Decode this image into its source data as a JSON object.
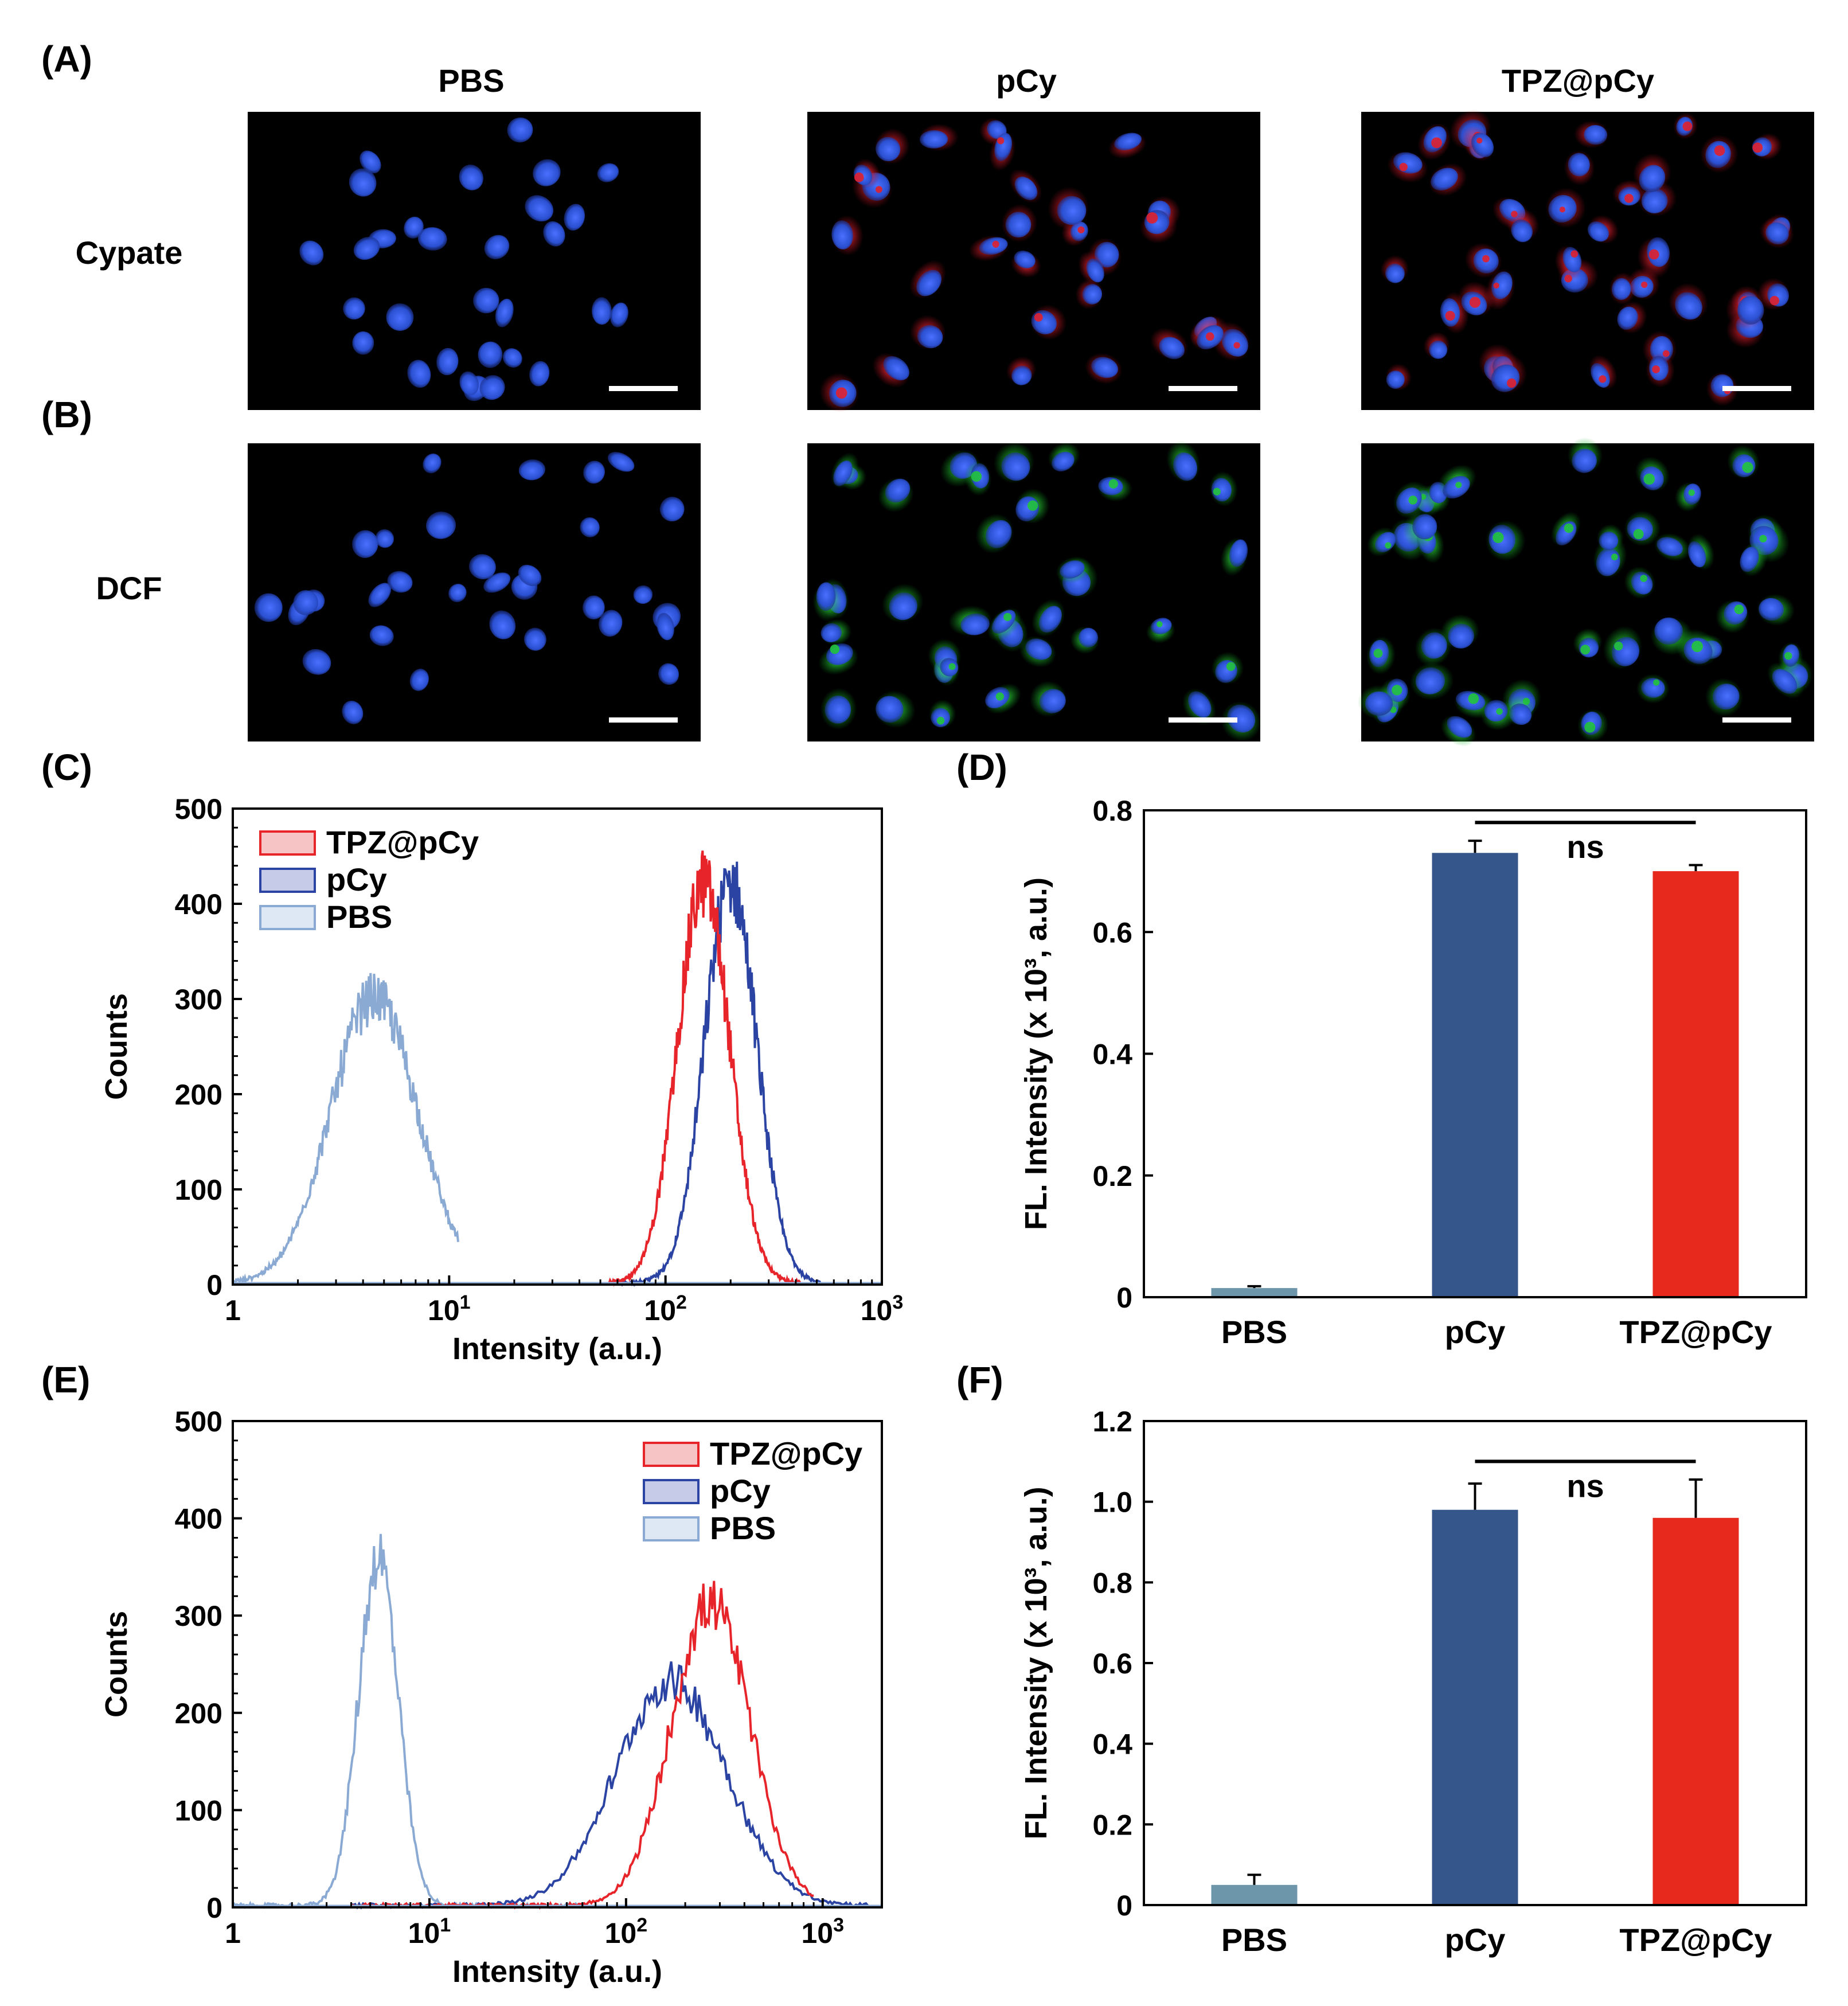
{
  "panels": {
    "A": "(A)",
    "B": "(B)",
    "C": "(C)",
    "D": "(D)",
    "E": "(E)",
    "F": "(F)"
  },
  "micrographs": {
    "columns": [
      "PBS",
      "pCy",
      "TPZ@pCy"
    ],
    "rows": [
      "Cypate",
      "DCF"
    ],
    "colors": {
      "nucleus": "#2a4fd0",
      "cypate": "#e0202c",
      "dcf": "#22c43a",
      "background": "#000000",
      "scalebar": "#ffffff"
    }
  },
  "chart_data": [
    {
      "id": "C",
      "type": "line",
      "xlabel": "Intensity (a.u.)",
      "ylabel": "Counts",
      "xscale": "log",
      "xlim": [
        1,
        1000
      ],
      "ylim": [
        0,
        500
      ],
      "yticks": [
        "0",
        "100",
        "200",
        "300",
        "400",
        "500"
      ],
      "xticks": [
        {
          "v": 1,
          "b": "1",
          "e": ""
        },
        {
          "v": 10,
          "b": "10",
          "e": "1"
        },
        {
          "v": 100,
          "b": "10",
          "e": "2"
        },
        {
          "v": 1000,
          "b": "10",
          "e": "3"
        }
      ],
      "legend": {
        "placement": "top-left",
        "entries": [
          "TPZ@pCy",
          "pCy",
          "PBS"
        ]
      },
      "series": [
        {
          "name": "TPZ@pCy",
          "color": "#e8242b",
          "peak_x": 150,
          "peak_y": 420,
          "sigma_log": 0.12,
          "range": [
            55,
            420
          ]
        },
        {
          "name": "pCy",
          "color": "#2b44a3",
          "peak_x": 200,
          "peak_y": 420,
          "sigma_log": 0.12,
          "range": [
            60,
            520
          ]
        },
        {
          "name": "PBS",
          "color": "#8aaad4",
          "peak_x": 4.5,
          "peak_y": 300,
          "sigma_log": 0.2,
          "range": [
            1,
            11
          ]
        }
      ]
    },
    {
      "id": "D",
      "type": "bar",
      "ylabel": "FL. Intensity (x 10³, a.u.)",
      "ylim": [
        0,
        0.8
      ],
      "yticks": [
        "0",
        "0.2",
        "0.4",
        "0.6",
        "0.8"
      ],
      "categories": [
        "PBS",
        "pCy",
        "TPZ@pCy"
      ],
      "values": [
        0.015,
        0.73,
        0.7
      ],
      "errors": [
        0.003,
        0.02,
        0.01
      ],
      "colors": [
        "#6e96ab",
        "#35568b",
        "#e6281d"
      ],
      "annotation": {
        "text": "ns",
        "from": 1,
        "to": 2,
        "y": 0.78
      }
    },
    {
      "id": "E",
      "type": "line",
      "xlabel": "Intensity (a.u.)",
      "ylabel": "Counts",
      "xscale": "log",
      "xlim": [
        1,
        2000
      ],
      "ylim": [
        0,
        500
      ],
      "yticks": [
        "0",
        "100",
        "200",
        "300",
        "400",
        "500"
      ],
      "xticks": [
        {
          "v": 1,
          "b": "1",
          "e": ""
        },
        {
          "v": 10,
          "b": "10",
          "e": "1"
        },
        {
          "v": 100,
          "b": "10",
          "e": "2"
        },
        {
          "v": 1000,
          "b": "10",
          "e": "3"
        }
      ],
      "legend": {
        "placement": "top-right",
        "entries": [
          "TPZ@pCy",
          "pCy",
          "PBS"
        ]
      },
      "series": [
        {
          "name": "TPZ@pCy",
          "color": "#e8242b",
          "peak_x": 270,
          "peak_y": 310,
          "sigma_log": 0.2,
          "range": [
            4,
            900
          ]
        },
        {
          "name": "pCy",
          "color": "#2b44a3",
          "peak_x": 170,
          "peak_y": 230,
          "sigma_log": 0.28,
          "range": [
            4,
            1700
          ]
        },
        {
          "name": "PBS",
          "color": "#8aaad4",
          "peak_x": 5.5,
          "peak_y": 360,
          "sigma_log": 0.1,
          "range": [
            1,
            60
          ]
        }
      ]
    },
    {
      "id": "F",
      "type": "bar",
      "ylabel": "FL. Intensity (x 10³, a.u.)",
      "ylim": [
        0,
        1.2
      ],
      "yticks": [
        "0",
        "0.2",
        "0.4",
        "0.6",
        "0.8",
        "1.0",
        "1.2"
      ],
      "categories": [
        "PBS",
        "pCy",
        "TPZ@pCy"
      ],
      "values": [
        0.05,
        0.98,
        0.96
      ],
      "errors": [
        0.025,
        0.065,
        0.095
      ],
      "colors": [
        "#6e96ab",
        "#35568b",
        "#e6281d"
      ],
      "annotation": {
        "text": "ns",
        "from": 1,
        "to": 2,
        "y": 1.1
      }
    }
  ]
}
